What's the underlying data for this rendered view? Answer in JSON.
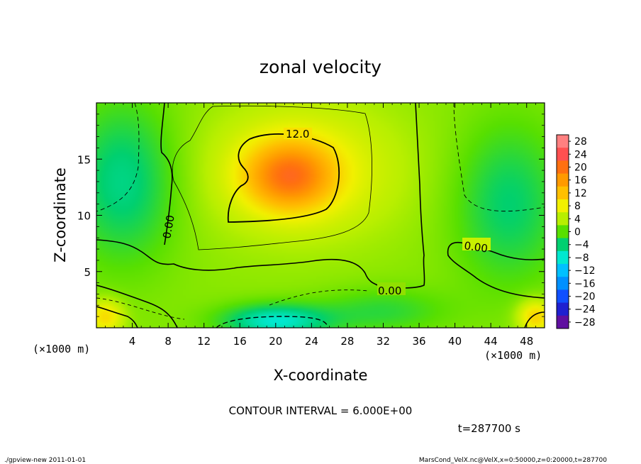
{
  "chart_data": {
    "type": "heatmap",
    "title": "zonal velocity",
    "xlabel": "X-coordinate",
    "ylabel": "Z-coordinate",
    "x_unit_left": "(×1000 m)",
    "x_unit_right": "(×1000 m)",
    "x_ticks": [
      4,
      8,
      12,
      16,
      20,
      24,
      28,
      32,
      36,
      40,
      44,
      48
    ],
    "y_ticks": [
      5,
      10,
      15
    ],
    "xlim": [
      0,
      50
    ],
    "ylim": [
      0,
      20
    ],
    "colorbar_levels": [
      28,
      24,
      20,
      16,
      12,
      8,
      4,
      0,
      -4,
      -8,
      -12,
      -16,
      -20,
      -24,
      -28
    ],
    "colorbar_labels": [
      "28",
      "24",
      "20",
      "16",
      "12",
      "8",
      "4",
      "0",
      "−4",
      "−8",
      "−12",
      "−16",
      "−20",
      "−24",
      "−28"
    ],
    "colorbar_colors": [
      "#ff8080",
      "#ff5050",
      "#ff7010",
      "#ff9a00",
      "#ffc000",
      "#f2f000",
      "#b8ef00",
      "#58e000",
      "#00d070",
      "#00e8d0",
      "#00c0ff",
      "#0090ff",
      "#1050ff",
      "#2020d0",
      "#6010a0"
    ],
    "contour_labels": [
      "12.0",
      "0.00",
      "0.00",
      "0.00"
    ],
    "contour_interval_text": "CONTOUR INTERVAL = 6.000E+00",
    "time_text": "t=287700 s",
    "velocity_field": {
      "background": 2,
      "features": [
        {
          "x": 21.5,
          "z": 13.5,
          "sx": 4.8,
          "sz": 3.0,
          "value": 13
        },
        {
          "x": 23,
          "z": 14,
          "sx": 11,
          "sz": 6,
          "value": 6
        },
        {
          "x": 3,
          "z": 13,
          "sx": 6,
          "sz": 7,
          "value": -7
        },
        {
          "x": 46,
          "z": 11,
          "sx": 6,
          "sz": 7,
          "value": -6
        },
        {
          "x": 20,
          "z": 0.6,
          "sx": 6,
          "sz": 1.5,
          "value": -10
        },
        {
          "x": 32,
          "z": 1.5,
          "sx": 7,
          "sz": 2,
          "value": -4
        },
        {
          "x": 49,
          "z": 1,
          "sx": 2,
          "sz": 1.5,
          "value": 9
        },
        {
          "x": 1,
          "z": 1,
          "sx": 2,
          "sz": 1.5,
          "value": 8
        }
      ]
    }
  },
  "footer": {
    "left": "./gpview-new   2011-01-01",
    "right": "MarsCond_VelX.nc@VelX,x=0:50000,z=0:20000,t=287700"
  }
}
